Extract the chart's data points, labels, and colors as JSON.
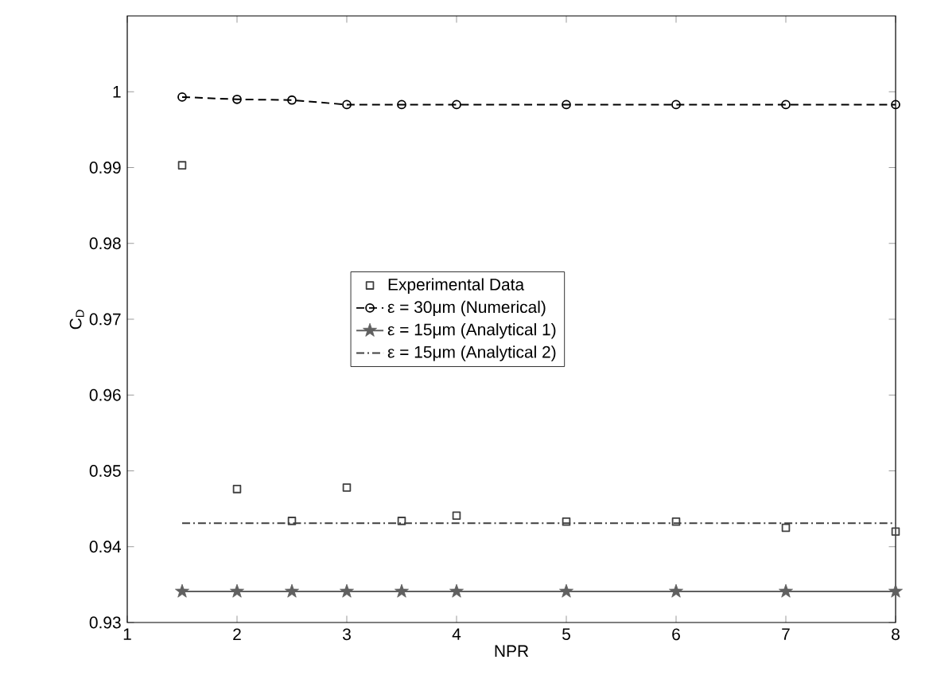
{
  "chart_data": {
    "type": "line",
    "xlabel": "NPR",
    "ylabel": "C$_{D}$",
    "xlim": [
      1,
      8
    ],
    "ylim": [
      0.93,
      1.01
    ],
    "xticks": [
      1,
      2,
      3,
      4,
      5,
      6,
      7,
      8
    ],
    "yticks": [
      0.93,
      0.94,
      0.95,
      0.96,
      0.97,
      0.98,
      0.99,
      1
    ],
    "legend": "center",
    "grid": false,
    "series": [
      {
        "name": "Experimental Data",
        "type": "scatter",
        "marker": "square",
        "color": "#404040",
        "x": [
          1.5,
          2,
          2.5,
          3,
          3.5,
          4,
          5,
          6,
          7,
          8
        ],
        "values": [
          0.9903,
          0.9476,
          0.9434,
          0.9478,
          0.9434,
          0.9441,
          0.9433,
          0.9433,
          0.9425,
          0.942
        ]
      },
      {
        "name": "ε = 30μm (Numerical)",
        "marker": "circle",
        "line_style": "dashed",
        "color": "#000000",
        "x": [
          1.5,
          2,
          2.5,
          3,
          3.5,
          4,
          5,
          6,
          7,
          8
        ],
        "values": [
          0.9993,
          0.999,
          0.9989,
          0.9983,
          0.9983,
          0.9983,
          0.9983,
          0.9983,
          0.9983,
          0.9983
        ]
      },
      {
        "name": "ε = 15μm (Analytical 1)",
        "marker": "star",
        "line_style": "solid",
        "color": "#606060",
        "x": [
          1.5,
          2,
          2.5,
          3,
          3.5,
          4,
          5,
          6,
          7,
          8
        ],
        "values": [
          0.9341,
          0.9341,
          0.9341,
          0.9341,
          0.9341,
          0.9341,
          0.9341,
          0.9341,
          0.9341,
          0.9341
        ]
      },
      {
        "name": "ε = 15μm (Analytical 2)",
        "marker": "none",
        "line_style": "dashdot",
        "color": "#404040",
        "x": [
          1.5,
          8
        ],
        "values": [
          0.9431,
          0.9431
        ]
      }
    ]
  }
}
